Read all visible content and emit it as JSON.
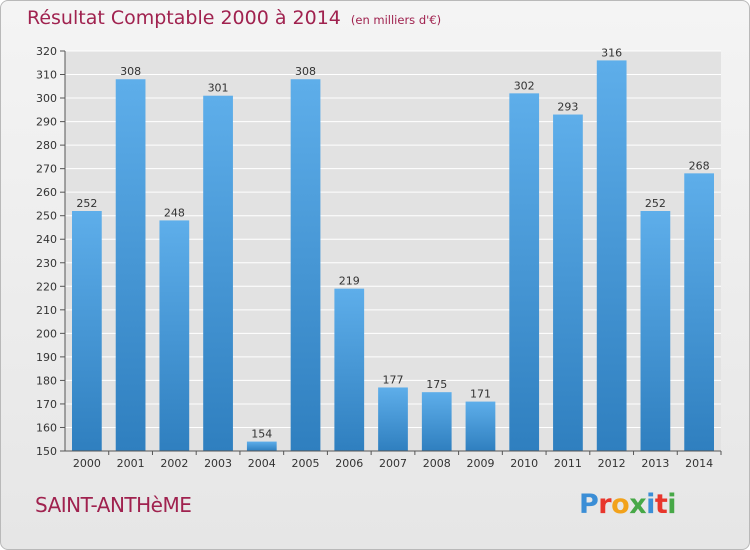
{
  "header": {
    "title": "Résultat Comptable 2000 à 2014",
    "unit_note": "(en milliers d'€)"
  },
  "footer": {
    "commune": "SAINT-ANTHèME",
    "logo_letters": [
      "P",
      "r",
      "o",
      "x",
      "i",
      "t",
      "i"
    ],
    "logo_colors": [
      "#3b8ed6",
      "#e8362c",
      "#f2a21b",
      "#47a847",
      "#3b8ed6",
      "#e8362c",
      "#47a847"
    ]
  },
  "colors": {
    "title": "#a0224f",
    "bar_top": "#5eaeea",
    "bar_bottom": "#2f7fbf",
    "plot_bg": "#e2e2e2",
    "grid": "#ffffff"
  },
  "chart_data": {
    "type": "bar",
    "title": "Résultat Comptable 2000 à 2014",
    "subtitle": "(en milliers d'€)",
    "categories": [
      "2000",
      "2001",
      "2002",
      "2003",
      "2004",
      "2005",
      "2006",
      "2007",
      "2008",
      "2009",
      "2010",
      "2011",
      "2012",
      "2013",
      "2014"
    ],
    "values": [
      252,
      308,
      248,
      301,
      154,
      308,
      219,
      177,
      175,
      171,
      302,
      293,
      316,
      252,
      268
    ],
    "ylim": [
      150,
      320
    ],
    "yticks": [
      150,
      160,
      170,
      180,
      190,
      200,
      210,
      220,
      230,
      240,
      250,
      260,
      270,
      280,
      290,
      300,
      310,
      320
    ],
    "xlabel": "",
    "ylabel": "",
    "grid": true,
    "data_labels": true
  }
}
